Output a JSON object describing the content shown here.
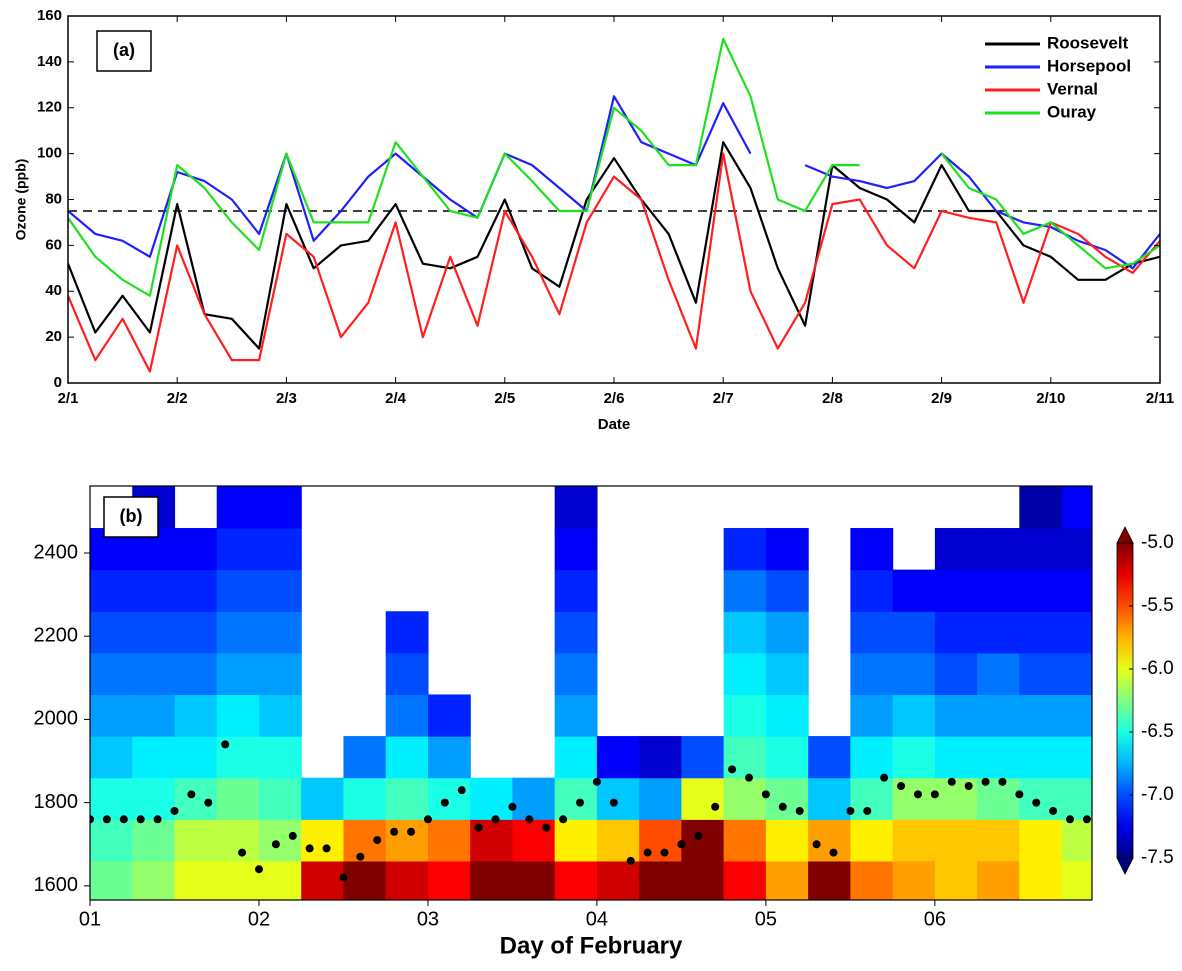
{
  "chart_data": [
    {
      "type": "line",
      "annotation": "(a)",
      "xlabel": "Date",
      "ylabel": "Ozone (ppb)",
      "x": [
        0,
        0.25,
        0.5,
        0.75,
        1,
        1.25,
        1.5,
        1.75,
        2,
        2.25,
        2.5,
        2.75,
        3,
        3.25,
        3.5,
        3.75,
        4,
        4.25,
        4.5,
        4.75,
        5,
        5.25,
        5.5,
        5.75,
        6,
        6.25,
        6.5,
        6.75,
        7,
        7.25,
        7.5,
        7.75,
        8,
        8.25,
        8.5,
        8.75,
        9,
        9.25,
        9.5,
        9.75,
        10
      ],
      "xlim": [
        0,
        10
      ],
      "xticks": [
        {
          "value": 0,
          "label": "2/1"
        },
        {
          "value": 1,
          "label": "2/2"
        },
        {
          "value": 2,
          "label": "2/3"
        },
        {
          "value": 3,
          "label": "2/4"
        },
        {
          "value": 4,
          "label": "2/5"
        },
        {
          "value": 5,
          "label": "2/6"
        },
        {
          "value": 6,
          "label": "2/7"
        },
        {
          "value": 7,
          "label": "2/8"
        },
        {
          "value": 8,
          "label": "2/9"
        },
        {
          "value": 9,
          "label": "2/10"
        },
        {
          "value": 10,
          "label": "2/11"
        }
      ],
      "ylim": [
        0,
        160
      ],
      "yticks": [
        0,
        20,
        40,
        60,
        80,
        100,
        120,
        140,
        160
      ],
      "reference_line": 75,
      "legend": "upper right",
      "series": [
        {
          "name": "Roosevelt",
          "color": "#000000",
          "values": [
            52,
            22,
            38,
            22,
            78,
            30,
            28,
            15,
            78,
            50,
            60,
            62,
            78,
            52,
            50,
            55,
            80,
            50,
            42,
            80,
            98,
            80,
            65,
            35,
            105,
            85,
            50,
            25,
            95,
            85,
            80,
            70,
            95,
            75,
            75,
            60,
            55,
            45,
            45,
            52,
            55
          ]
        },
        {
          "name": "Horsepool",
          "color": "#1f1fff",
          "values": [
            75,
            65,
            62,
            55,
            92,
            88,
            80,
            65,
            100,
            62,
            75,
            90,
            100,
            90,
            80,
            72,
            100,
            95,
            85,
            75,
            125,
            105,
            100,
            95,
            122,
            100,
            null,
            95,
            90,
            88,
            85,
            88,
            100,
            90,
            75,
            70,
            68,
            62,
            58,
            50,
            65
          ]
        },
        {
          "name": "Vernal",
          "color": "#ff1f1f",
          "values": [
            38,
            10,
            28,
            5,
            60,
            30,
            10,
            10,
            65,
            55,
            20,
            35,
            70,
            20,
            55,
            25,
            75,
            55,
            30,
            70,
            90,
            80,
            45,
            15,
            100,
            40,
            15,
            35,
            78,
            80,
            60,
            50,
            75,
            72,
            70,
            35,
            70,
            65,
            55,
            48,
            62
          ]
        },
        {
          "name": "Ouray",
          "color": "#1fe01f",
          "values": [
            72,
            55,
            45,
            38,
            95,
            85,
            70,
            58,
            100,
            70,
            70,
            70,
            105,
            90,
            75,
            72,
            100,
            88,
            75,
            75,
            120,
            110,
            95,
            95,
            150,
            125,
            80,
            75,
            95,
            95,
            null,
            null,
            100,
            85,
            80,
            65,
            70,
            60,
            50,
            52,
            60
          ]
        }
      ]
    },
    {
      "type": "heatmap",
      "annotation": "(b)",
      "xlabel": "Day of February",
      "xlim": [
        1,
        6.93
      ],
      "xticks": [
        {
          "value": 1,
          "label": "01"
        },
        {
          "value": 2,
          "label": "02"
        },
        {
          "value": 3,
          "label": "03"
        },
        {
          "value": 4,
          "label": "04"
        },
        {
          "value": 5,
          "label": "05"
        },
        {
          "value": 6,
          "label": "06"
        }
      ],
      "ylim": [
        1566,
        2561
      ],
      "yticks": [
        1600,
        1800,
        2000,
        2200,
        2400
      ],
      "xbins": [
        1,
        1.25,
        1.5,
        1.75,
        2,
        2.25,
        2.5,
        2.75,
        3,
        3.25,
        3.5,
        3.75,
        4,
        4.25,
        4.5,
        4.75,
        5,
        5.25,
        5.5,
        5.75,
        6,
        6.25,
        6.5,
        6.75,
        7
      ],
      "ybins": [
        1560,
        1660,
        1760,
        1860,
        1960,
        2060,
        2160,
        2260,
        2360,
        2460,
        2560
      ],
      "z": [
        [
          -6.3,
          -6.4,
          -6.5,
          -6.7,
          -6.8,
          -6.9,
          -7.0,
          -7.1,
          -7.2,
          null
        ],
        [
          -6.2,
          -6.3,
          -6.5,
          -6.6,
          -6.8,
          -6.9,
          -7.0,
          -7.1,
          -7.2,
          -7.3
        ],
        [
          -6.0,
          -6.1,
          -6.4,
          -6.6,
          -6.7,
          -6.9,
          -7.0,
          -7.1,
          -7.2,
          null
        ],
        [
          -6.0,
          -6.1,
          -6.3,
          -6.5,
          -6.6,
          -6.8,
          -6.9,
          -7.0,
          -7.1,
          -7.2
        ],
        [
          -6.0,
          -6.2,
          -6.4,
          -6.5,
          -6.7,
          -6.8,
          -6.9,
          -7.0,
          -7.1,
          -7.2
        ],
        [
          -5.2,
          -5.9,
          -6.7,
          null,
          null,
          null,
          null,
          null,
          null,
          null
        ],
        [
          -5.0,
          -5.6,
          -6.5,
          -6.9,
          null,
          null,
          null,
          null,
          null,
          null
        ],
        [
          -5.2,
          -5.7,
          -6.4,
          -6.6,
          -6.9,
          -7.0,
          -7.1,
          null,
          null,
          null
        ],
        [
          -5.3,
          -5.6,
          -6.5,
          -6.8,
          -7.1,
          null,
          null,
          null,
          null,
          null
        ],
        [
          -5.0,
          -5.2,
          -6.6,
          null,
          null,
          null,
          null,
          null,
          null,
          null
        ],
        [
          -5.0,
          -5.3,
          -6.8,
          null,
          null,
          null,
          null,
          null,
          null,
          null
        ],
        [
          -5.3,
          -5.9,
          -6.4,
          -6.6,
          -6.8,
          -6.9,
          -7.0,
          -7.1,
          -7.2,
          -7.3
        ],
        [
          -5.2,
          -5.8,
          -6.7,
          -7.2,
          null,
          null,
          null,
          null,
          null,
          null
        ],
        [
          -5.0,
          -5.5,
          -6.8,
          -7.3,
          null,
          null,
          null,
          null,
          null,
          null
        ],
        [
          -5.0,
          -5.0,
          -6.0,
          -7.0,
          null,
          null,
          null,
          null,
          null,
          null
        ],
        [
          -5.3,
          -5.6,
          -6.2,
          -6.4,
          -6.5,
          -6.6,
          -6.7,
          -6.9,
          -7.1,
          null
        ],
        [
          -5.7,
          -5.9,
          -6.3,
          -6.5,
          -6.6,
          -6.7,
          -6.8,
          -7.0,
          -7.2,
          null
        ],
        [
          -5.0,
          -5.7,
          -6.7,
          -7.0,
          null,
          null,
          null,
          null,
          null,
          null
        ],
        [
          -5.6,
          -5.9,
          -6.4,
          -6.6,
          -6.8,
          -6.9,
          -7.0,
          -7.1,
          -7.2,
          null
        ],
        [
          -5.7,
          -5.8,
          -6.2,
          -6.5,
          -6.7,
          -6.9,
          -7.0,
          -7.2,
          null,
          null
        ],
        [
          -5.8,
          -5.8,
          -6.2,
          -6.6,
          -6.8,
          -7.0,
          -7.1,
          -7.2,
          -7.3,
          null
        ],
        [
          -5.7,
          -5.8,
          -6.3,
          -6.6,
          -6.8,
          -6.9,
          -7.1,
          -7.2,
          -7.3,
          null
        ],
        [
          -5.9,
          -5.9,
          -6.4,
          -6.6,
          -6.8,
          -7.0,
          -7.1,
          -7.2,
          -7.3,
          -7.4
        ],
        [
          -6.0,
          -6.1,
          -6.4,
          -6.6,
          -6.8,
          -7.0,
          -7.1,
          -7.2,
          -7.3,
          -7.2
        ]
      ],
      "colorbar": {
        "lim": [
          -7.5,
          -5.0
        ],
        "ticks": [
          {
            "value": -5,
            "label": "-5.0"
          },
          -5.5,
          {
            "value": -6,
            "label": "-6.0"
          },
          -6.5,
          {
            "value": -7,
            "label": "-7.0"
          },
          -7.5
        ]
      },
      "markers": {
        "color": "#000000",
        "x": [
          1.0,
          1.1,
          1.2,
          1.3,
          1.4,
          1.5,
          1.6,
          1.7,
          1.8,
          1.9,
          2.0,
          2.1,
          2.2,
          2.3,
          2.4,
          2.5,
          2.6,
          2.7,
          2.8,
          2.9,
          3.0,
          3.1,
          3.2,
          3.3,
          3.4,
          3.5,
          3.6,
          3.7,
          3.8,
          3.9,
          4.0,
          4.1,
          4.2,
          4.3,
          4.4,
          4.5,
          4.6,
          4.7,
          4.8,
          4.9,
          5.0,
          5.1,
          5.2,
          5.3,
          5.4,
          5.5,
          5.6,
          5.7,
          5.8,
          5.9,
          6.0,
          6.1,
          6.2,
          6.3,
          6.4,
          6.5,
          6.6,
          6.7,
          6.8,
          6.9
        ],
        "values": [
          1760,
          1760,
          1760,
          1760,
          1760,
          1780,
          1820,
          1800,
          1940,
          1680,
          1640,
          1700,
          1720,
          1690,
          1690,
          1620,
          1670,
          1710,
          1730,
          1730,
          1760,
          1800,
          1830,
          1740,
          1760,
          1790,
          1760,
          1740,
          1760,
          1800,
          1850,
          1800,
          1660,
          1680,
          1680,
          1700,
          1720,
          1790,
          1880,
          1860,
          1820,
          1790,
          1780,
          1700,
          1680,
          1780,
          1780,
          1860,
          1840,
          1820,
          1820,
          1850,
          1840,
          1850,
          1850,
          1820,
          1800,
          1780,
          1760,
          1760
        ]
      }
    }
  ]
}
